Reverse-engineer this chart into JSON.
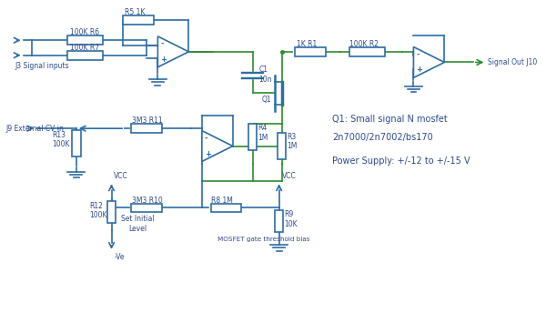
{
  "bg_color": "#ffffff",
  "line_color": "#2e6da4",
  "line_color2": "#2e8b2e",
  "text_color": "#2e4a8a",
  "fig_width": 6.0,
  "fig_height": 3.55,
  "annotations": {
    "q1_label": "Q1: Small signal N mosfet",
    "q1_type": "2n7000/2n7002/bs170",
    "power": "Power Supply: +/-12 to +/-15 V"
  },
  "component_labels": {
    "R6": "100K R6",
    "R5": "R5 1K",
    "R7": "100K R7",
    "R1": "1K R1",
    "R2": "100K R2",
    "C1": "C1\n10n",
    "Q1": "Q1",
    "R4": "R4\n1M",
    "R3": "R3\n1M",
    "R11": "3M3 R11",
    "R13": "R13\n100K",
    "R10": "3M3 R10",
    "R12": "R12\n100K",
    "R8": "R8 1M",
    "R9": "R9\n10K"
  },
  "port_labels": {
    "J3": "J3 Signal inputs",
    "J9": "J9 External CV in",
    "J10": "Signal Out J10",
    "VCC1": "VCC",
    "VCC2": "VCC",
    "Ve": "-Ve",
    "SIL": "Set Initial\nLevel",
    "MOSFET_bias": "MOSFET gate threshold bias"
  }
}
